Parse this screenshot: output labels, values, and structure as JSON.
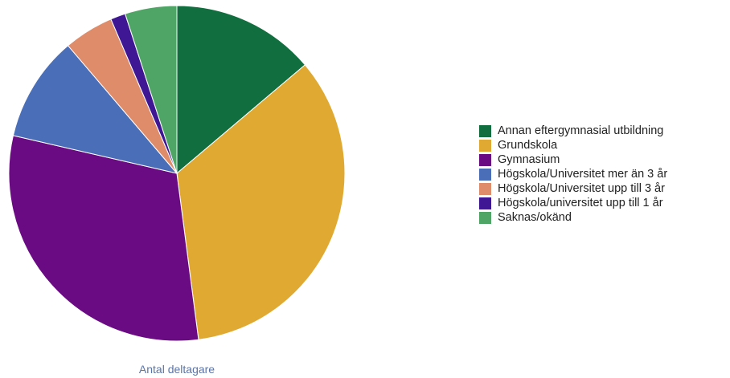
{
  "chart_data": {
    "type": "pie",
    "title": "",
    "caption": "Antal deltagare",
    "legend_position": "right",
    "slices": [
      {
        "label": "Annan eftergymnasial utbildning",
        "value": 14.4,
        "color": "#116e3f"
      },
      {
        "label": "Grundskola",
        "value": 35.6,
        "color": "#e0aa32"
      },
      {
        "label": "Gymnasium",
        "value": 32.0,
        "color": "#6b0b84"
      },
      {
        "label": "Högskola/Universitet mer än 3 år",
        "value": 10.6,
        "color": "#4a6fb8"
      },
      {
        "label": "Högskola/Universitet upp till 3 år",
        "value": 5.0,
        "color": "#df8c6a"
      },
      {
        "label": "Högskola/universitet upp till 1 år",
        "value": 1.5,
        "color": "#3f1795"
      },
      {
        "label": "Saknas/okänd",
        "value": 5.2,
        "color": "#4fa565"
      }
    ]
  }
}
